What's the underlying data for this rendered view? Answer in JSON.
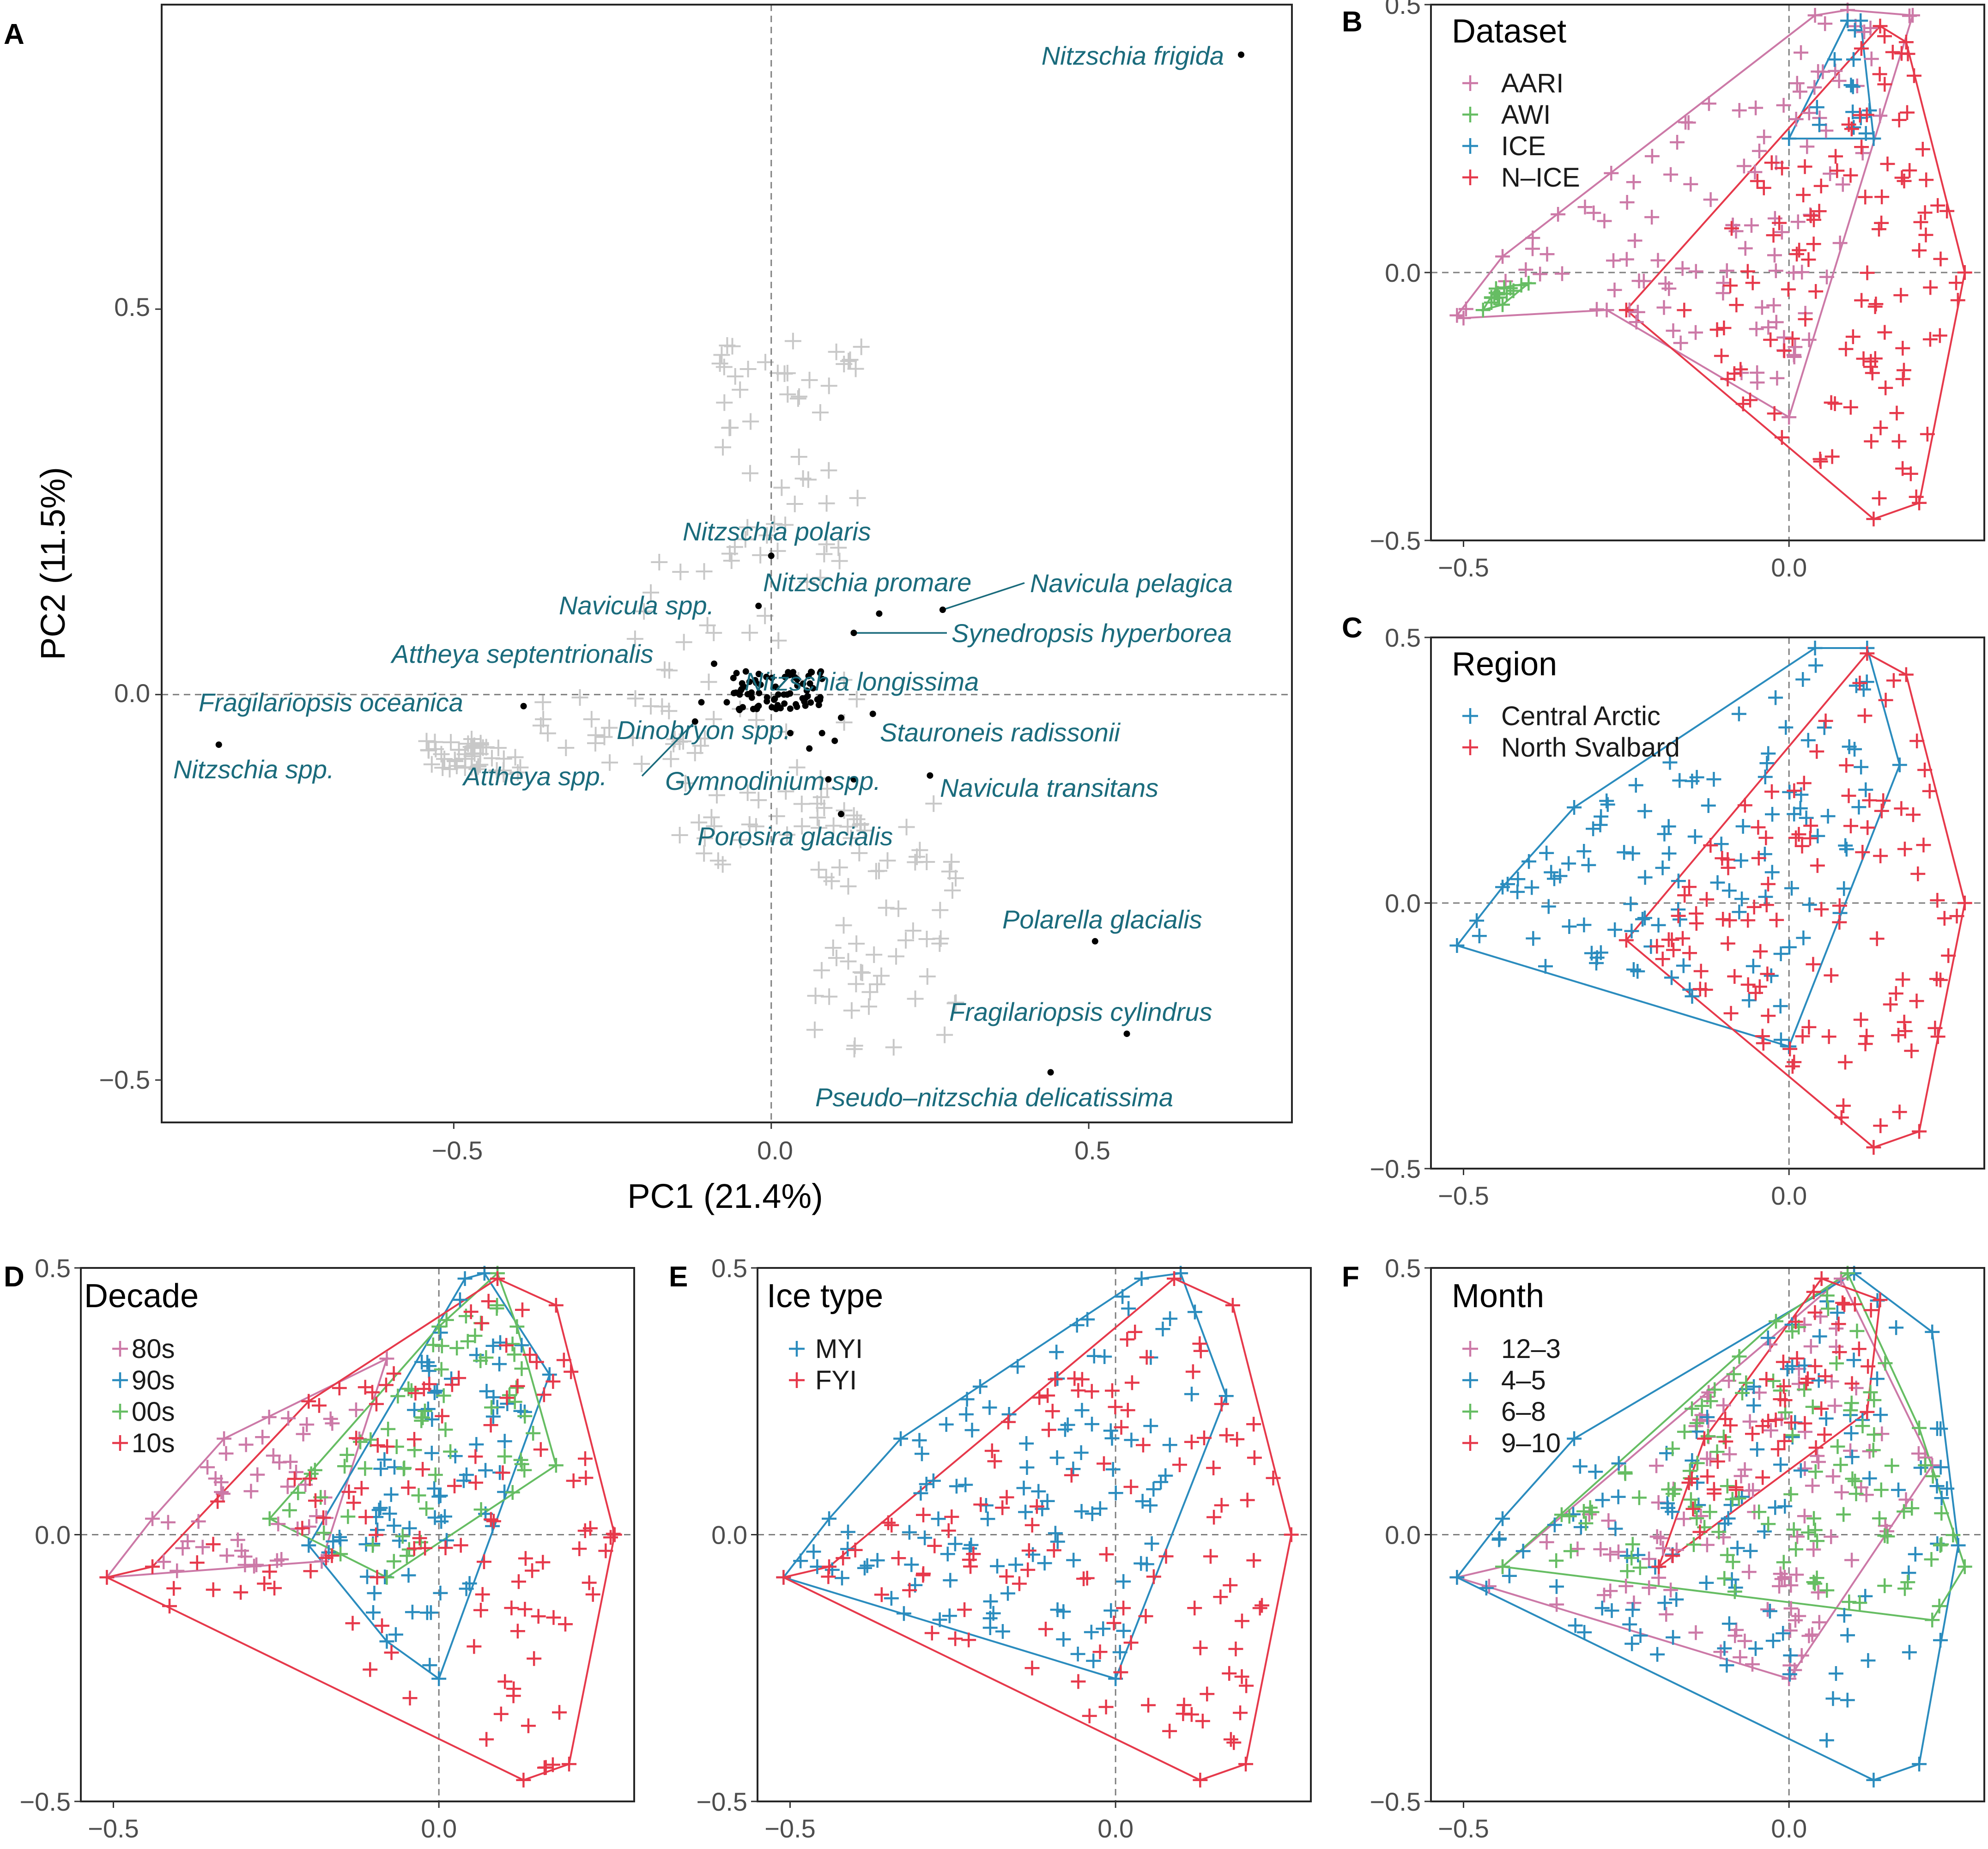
{
  "chart_data": [
    {
      "id": "A",
      "type": "scatter",
      "panel_label": "A",
      "xlabel": "PC1 (21.4%)",
      "ylabel": "PC2 (11.5%)",
      "xlim": [
        -0.96,
        0.82
      ],
      "ylim": [
        -0.555,
        0.895
      ],
      "xticks": [
        -0.5,
        0.0,
        0.5
      ],
      "yticks": [
        -0.5,
        0.0,
        0.5
      ],
      "tick_labels": {
        "x": [
          "−0.5",
          "0.0",
          "0.5"
        ],
        "y": [
          "−0.5",
          "0.0",
          "0.5"
        ]
      },
      "sample_color": "#c8c8c8",
      "species_color": "#000000",
      "label_color": "#1a6b7c",
      "species": [
        {
          "name": "Nitzschia frigida",
          "x": 0.74,
          "y": 0.83
        },
        {
          "name": "Nitzschia spp.",
          "x": -0.87,
          "y": -0.065
        },
        {
          "name": "Fragilariopsis oceanica",
          "x": -0.39,
          "y": -0.015
        },
        {
          "name": "Attheya septentrionalis",
          "x": -0.09,
          "y": 0.04
        },
        {
          "name": "Navicula spp.",
          "x": -0.02,
          "y": 0.115
        },
        {
          "name": "Nitzschia polaris",
          "x": 0.0,
          "y": 0.18
        },
        {
          "name": "Nitzschia promare",
          "x": 0.17,
          "y": 0.105
        },
        {
          "name": "Navicula pelagica",
          "x": 0.27,
          "y": 0.11
        },
        {
          "name": "Synedropsis hyperborea",
          "x": 0.13,
          "y": 0.08
        },
        {
          "name": "Nitzschia longissima",
          "x": 0.02,
          "y": 0.0
        },
        {
          "name": "Dinobryon spp.",
          "x": -0.11,
          "y": -0.01
        },
        {
          "name": "Attheya spp.",
          "x": -0.12,
          "y": -0.035
        },
        {
          "name": "Stauroneis radissonii",
          "x": 0.16,
          "y": -0.025
        },
        {
          "name": "Gymnodinium spp.",
          "x": 0.13,
          "y": -0.11
        },
        {
          "name": "Navicula transitans",
          "x": 0.25,
          "y": -0.105
        },
        {
          "name": "Porosira glacialis",
          "x": 0.11,
          "y": -0.155
        },
        {
          "name": "Polarella glacialis",
          "x": 0.51,
          "y": -0.32
        },
        {
          "name": "Fragilariopsis cylindrus",
          "x": 0.56,
          "y": -0.44
        },
        {
          "name": "Pseudo–nitzschia delicatissima",
          "x": 0.44,
          "y": -0.49
        }
      ]
    },
    {
      "id": "B",
      "type": "scatter",
      "panel_label": "B",
      "legend_title": "Dataset",
      "xlim": [
        -0.55,
        0.3
      ],
      "ylim": [
        -0.5,
        0.5
      ],
      "xticks": [
        -0.5,
        0.0
      ],
      "yticks": [
        -0.5,
        0.0,
        0.5
      ],
      "tick_labels": {
        "x": [
          "−0.5",
          "0.0"
        ],
        "y": [
          "−0.5",
          "0.0",
          "0.5"
        ]
      },
      "series": [
        {
          "name": "AARI",
          "color": "#cc79a7",
          "hull": [
            [
              -0.51,
              -0.08
            ],
            [
              -0.5,
              -0.085
            ],
            [
              -0.28,
              -0.07
            ],
            [
              0.0,
              -0.27
            ],
            [
              0.19,
              0.48
            ],
            [
              0.09,
              0.49
            ],
            [
              0.04,
              0.48
            ],
            [
              -0.44,
              0.03
            ]
          ]
        },
        {
          "name": "AWI",
          "color": "#66bd63",
          "hull": [
            [
              -0.47,
              -0.07
            ],
            [
              -0.44,
              -0.06
            ],
            [
              -0.4,
              -0.02
            ],
            [
              -0.45,
              -0.03
            ]
          ]
        },
        {
          "name": "ICE",
          "color": "#2b8cbe",
          "hull": [
            [
              0.0,
              0.25
            ],
            [
              0.13,
              0.25
            ],
            [
              0.11,
              0.47
            ],
            [
              0.09,
              0.47
            ]
          ]
        },
        {
          "name": "N–ICE",
          "color": "#e6394b",
          "hull": [
            [
              -0.25,
              -0.07
            ],
            [
              0.13,
              -0.46
            ],
            [
              0.2,
              -0.43
            ],
            [
              0.27,
              -0.0
            ],
            [
              0.18,
              0.43
            ],
            [
              0.14,
              0.46
            ]
          ]
        }
      ]
    },
    {
      "id": "C",
      "type": "scatter",
      "panel_label": "C",
      "legend_title": "Region",
      "xlim": [
        -0.55,
        0.3
      ],
      "ylim": [
        -0.5,
        0.5
      ],
      "xticks": [
        -0.5,
        0.0
      ],
      "yticks": [
        -0.5,
        0.0,
        0.5
      ],
      "tick_labels": {
        "x": [
          "−0.5",
          "0.0"
        ],
        "y": [
          "−0.5",
          "0.0",
          "0.5"
        ]
      },
      "series": [
        {
          "name": "Central Arctic",
          "color": "#2b8cbe",
          "hull": [
            [
              -0.51,
              -0.08
            ],
            [
              0.0,
              -0.27
            ],
            [
              0.17,
              0.26
            ],
            [
              0.12,
              0.48
            ],
            [
              0.04,
              0.48
            ],
            [
              -0.33,
              0.18
            ],
            [
              -0.44,
              0.03
            ]
          ]
        },
        {
          "name": "North Svalbard",
          "color": "#e6394b",
          "hull": [
            [
              -0.25,
              -0.07
            ],
            [
              0.13,
              -0.46
            ],
            [
              0.2,
              -0.43
            ],
            [
              0.27,
              -0.0
            ],
            [
              0.18,
              0.43
            ],
            [
              0.12,
              0.47
            ]
          ]
        }
      ]
    },
    {
      "id": "D",
      "type": "scatter",
      "panel_label": "D",
      "legend_title": "Decade",
      "xlim": [
        -0.55,
        0.3
      ],
      "ylim": [
        -0.5,
        0.5
      ],
      "xticks": [
        -0.5,
        0.0
      ],
      "yticks": [
        -0.5,
        0.0,
        0.5
      ],
      "tick_labels": {
        "x": [
          "−0.5",
          "0.0"
        ],
        "y": [
          "−0.5",
          "0.0",
          "0.5"
        ]
      },
      "series": [
        {
          "name": "80s",
          "color": "#cc79a7",
          "hull": [
            [
              -0.51,
              -0.08
            ],
            [
              -0.18,
              -0.05
            ],
            [
              -0.08,
              0.33
            ],
            [
              -0.33,
              0.18
            ],
            [
              -0.44,
              0.03
            ]
          ]
        },
        {
          "name": "90s",
          "color": "#2b8cbe",
          "hull": [
            [
              -0.08,
              -0.2
            ],
            [
              0.0,
              -0.27
            ],
            [
              0.17,
              0.3
            ],
            [
              0.07,
              0.49
            ],
            [
              0.04,
              0.48
            ],
            [
              -0.2,
              -0.02
            ]
          ]
        },
        {
          "name": "00s",
          "color": "#66bd63",
          "hull": [
            [
              -0.26,
              0.03
            ],
            [
              -0.08,
              -0.08
            ],
            [
              0.18,
              0.13
            ],
            [
              0.12,
              0.39
            ],
            [
              0.09,
              0.49
            ],
            [
              0.0,
              0.39
            ]
          ]
        },
        {
          "name": "10s",
          "color": "#e6394b",
          "hull": [
            [
              -0.51,
              -0.08
            ],
            [
              0.13,
              -0.46
            ],
            [
              0.2,
              -0.43
            ],
            [
              0.27,
              -0.0
            ],
            [
              0.18,
              0.43
            ],
            [
              0.09,
              0.48
            ],
            [
              -0.2,
              0.25
            ],
            [
              -0.44,
              -0.06
            ]
          ]
        }
      ]
    },
    {
      "id": "E",
      "type": "scatter",
      "panel_label": "E",
      "legend_title": "Ice type",
      "xlim": [
        -0.55,
        0.3
      ],
      "ylim": [
        -0.5,
        0.5
      ],
      "xticks": [
        -0.5,
        0.0
      ],
      "yticks": [
        -0.5,
        0.0,
        0.5
      ],
      "tick_labels": {
        "x": [
          "−0.5",
          "0.0"
        ],
        "y": [
          "−0.5",
          "0.0",
          "0.5"
        ]
      },
      "series": [
        {
          "name": "MYI",
          "color": "#2b8cbe",
          "hull": [
            [
              -0.51,
              -0.08
            ],
            [
              0.0,
              -0.27
            ],
            [
              0.17,
              0.26
            ],
            [
              0.1,
              0.49
            ],
            [
              0.04,
              0.48
            ],
            [
              -0.33,
              0.18
            ],
            [
              -0.44,
              0.03
            ]
          ]
        },
        {
          "name": "FYI",
          "color": "#e6394b",
          "hull": [
            [
              -0.51,
              -0.08
            ],
            [
              0.13,
              -0.46
            ],
            [
              0.2,
              -0.43
            ],
            [
              0.27,
              -0.0
            ],
            [
              0.18,
              0.43
            ],
            [
              0.09,
              0.48
            ],
            [
              -0.44,
              -0.06
            ]
          ]
        }
      ]
    },
    {
      "id": "F",
      "type": "scatter",
      "panel_label": "F",
      "legend_title": "Month",
      "xlim": [
        -0.55,
        0.3
      ],
      "ylim": [
        -0.5,
        0.5
      ],
      "xticks": [
        -0.5,
        0.0
      ],
      "yticks": [
        -0.5,
        0.0,
        0.5
      ],
      "tick_labels": {
        "x": [
          "−0.5",
          "0.0"
        ],
        "y": [
          "−0.5",
          "0.0",
          "0.5"
        ]
      },
      "series": [
        {
          "name": "12–3",
          "color": "#cc79a7",
          "hull": [
            [
              -0.51,
              -0.08
            ],
            [
              0.0,
              -0.27
            ],
            [
              0.22,
              0.13
            ],
            [
              0.08,
              0.48
            ],
            [
              -0.44,
              -0.06
            ]
          ]
        },
        {
          "name": "4–5",
          "color": "#2b8cbe",
          "hull": [
            [
              -0.51,
              -0.08
            ],
            [
              0.13,
              -0.46
            ],
            [
              0.2,
              -0.43
            ],
            [
              0.26,
              -0.02
            ],
            [
              0.22,
              0.38
            ],
            [
              0.1,
              0.49
            ],
            [
              -0.33,
              0.18
            ],
            [
              -0.44,
              0.03
            ]
          ]
        },
        {
          "name": "6–8",
          "color": "#66bd63",
          "hull": [
            [
              -0.44,
              -0.06
            ],
            [
              0.22,
              -0.16
            ],
            [
              0.27,
              -0.06
            ],
            [
              0.2,
              0.2
            ],
            [
              0.09,
              0.49
            ],
            [
              -0.02,
              0.4
            ]
          ]
        },
        {
          "name": "9–10",
          "color": "#e6394b",
          "hull": [
            [
              -0.2,
              -0.06
            ],
            [
              0.12,
              0.23
            ],
            [
              0.14,
              0.44
            ],
            [
              0.05,
              0.48
            ],
            [
              -0.13,
              0.18
            ]
          ]
        }
      ]
    }
  ]
}
